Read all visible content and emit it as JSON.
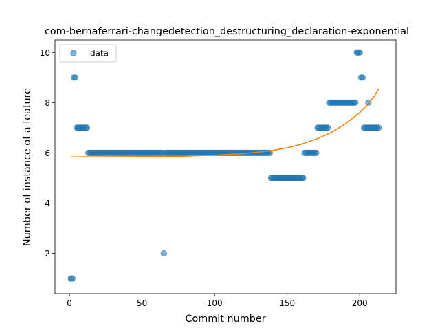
{
  "chart_data": {
    "type": "scatter",
    "title": "com-bernaferrari-changedetection_destructuring_declaration-exponential",
    "xlabel": "Commit number",
    "ylabel": "Number of instance of a feature",
    "xlim": [
      -10,
      225
    ],
    "ylim": [
      0.4,
      10.5
    ],
    "xticks": [
      0,
      50,
      100,
      150,
      200
    ],
    "yticks": [
      2,
      4,
      6,
      8,
      10
    ],
    "legend": {
      "position": "upper-left",
      "entries": [
        "data"
      ]
    },
    "colors": {
      "points": "#1f77b4",
      "fit": "#ff7f0e"
    },
    "series": [
      {
        "name": "data",
        "kind": "points",
        "runs": [
          {
            "x_start": 1,
            "x_end": 2,
            "y": 1
          },
          {
            "x_start": 3,
            "x_end": 4,
            "y": 9
          },
          {
            "x_start": 5,
            "x_end": 12,
            "y": 7
          },
          {
            "x_start": 13,
            "x_end": 64,
            "y": 6
          },
          {
            "x_start": 65,
            "x_end": 65,
            "y": 2
          },
          {
            "x_start": 66,
            "x_end": 138,
            "y": 6
          },
          {
            "x_start": 139,
            "x_end": 161,
            "y": 5
          },
          {
            "x_start": 162,
            "x_end": 170,
            "y": 6
          },
          {
            "x_start": 171,
            "x_end": 178,
            "y": 7
          },
          {
            "x_start": 179,
            "x_end": 197,
            "y": 8
          },
          {
            "x_start": 198,
            "x_end": 200,
            "y": 10
          },
          {
            "x_start": 201,
            "x_end": 202,
            "y": 9
          },
          {
            "x_start": 203,
            "x_end": 204,
            "y": 7
          },
          {
            "x_start": 206,
            "x_end": 206,
            "y": 8
          },
          {
            "x_start": 205,
            "x_end": 213,
            "y": 7
          }
        ]
      },
      {
        "kind": "fit",
        "x": [
          1,
          40,
          80,
          100,
          120,
          130,
          140,
          150,
          160,
          170,
          180,
          190,
          200,
          205,
          210,
          213
        ],
        "y": [
          5.84,
          5.85,
          5.87,
          5.91,
          5.97,
          6.03,
          6.1,
          6.2,
          6.35,
          6.55,
          6.8,
          7.15,
          7.6,
          7.9,
          8.25,
          8.55
        ]
      }
    ]
  }
}
